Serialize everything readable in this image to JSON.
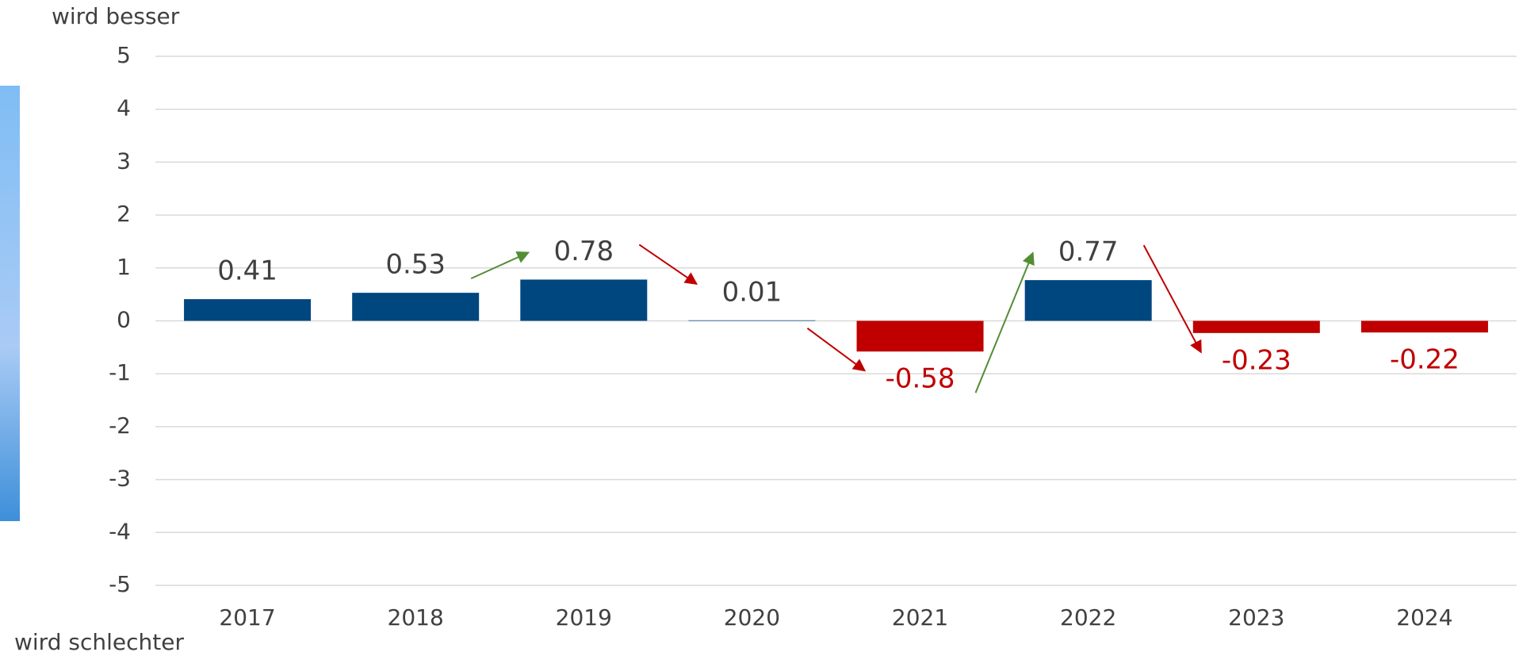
{
  "chart_data": {
    "type": "bar",
    "top_label": "wird besser",
    "bottom_label": "wird schlechter",
    "categories": [
      "2017",
      "2018",
      "2019",
      "2020",
      "2021",
      "2022",
      "2023",
      "2024"
    ],
    "values": [
      0.41,
      0.53,
      0.78,
      0.01,
      -0.58,
      0.77,
      -0.23,
      -0.22
    ],
    "positive_color": "#00467f",
    "negative_color": "#c00000",
    "up_arrow_color": "#538d35",
    "down_arrow_color": "#c00000",
    "ylim": [
      -5,
      5
    ],
    "yticks": [
      -5,
      -4,
      -3,
      -2,
      -1,
      0,
      1,
      2,
      3,
      4,
      5
    ],
    "grid": true
  }
}
